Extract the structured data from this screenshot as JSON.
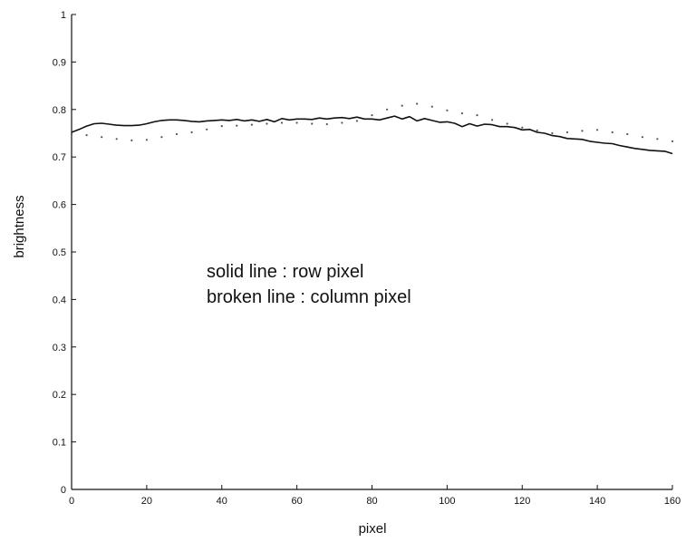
{
  "chart_data": {
    "type": "line",
    "xlabel": "pixel",
    "ylabel": "brightness",
    "xlim": [
      0,
      160
    ],
    "ylim": [
      0,
      1
    ],
    "xticks": [
      "0",
      "20",
      "40",
      "60",
      "80",
      "100",
      "120",
      "140",
      "160"
    ],
    "yticks": [
      "0",
      "0.1",
      "0.2",
      "0.3",
      "0.4",
      "0.5",
      "0.6",
      "0.7",
      "0.8",
      "0.9",
      "1"
    ],
    "annotations": [
      "solid line : row pixel",
      "broken line : column pixel"
    ],
    "grid": false,
    "series": [
      {
        "name": "row pixel",
        "style": "solid",
        "color": "#111111",
        "x": [
          0,
          2,
          4,
          6,
          8,
          10,
          12,
          14,
          16,
          18,
          20,
          22,
          24,
          26,
          28,
          30,
          32,
          34,
          36,
          38,
          40,
          42,
          44,
          46,
          48,
          50,
          52,
          54,
          56,
          58,
          60,
          62,
          64,
          66,
          68,
          70,
          72,
          74,
          76,
          78,
          80,
          82,
          84,
          86,
          88,
          90,
          92,
          94,
          96,
          98,
          100,
          102,
          104,
          106,
          108,
          110,
          112,
          114,
          116,
          118,
          120,
          122,
          124,
          126,
          128,
          130,
          132,
          134,
          136,
          138,
          140,
          142,
          144,
          146,
          148,
          150,
          152,
          154,
          156,
          158,
          160
        ],
        "y": [
          0.752,
          0.758,
          0.765,
          0.77,
          0.771,
          0.769,
          0.767,
          0.766,
          0.766,
          0.767,
          0.77,
          0.774,
          0.777,
          0.778,
          0.778,
          0.777,
          0.775,
          0.774,
          0.776,
          0.777,
          0.778,
          0.777,
          0.779,
          0.776,
          0.778,
          0.775,
          0.779,
          0.774,
          0.781,
          0.778,
          0.78,
          0.78,
          0.779,
          0.782,
          0.78,
          0.782,
          0.783,
          0.781,
          0.784,
          0.78,
          0.78,
          0.778,
          0.782,
          0.786,
          0.78,
          0.785,
          0.776,
          0.781,
          0.777,
          0.773,
          0.774,
          0.771,
          0.764,
          0.77,
          0.765,
          0.769,
          0.768,
          0.764,
          0.764,
          0.762,
          0.757,
          0.758,
          0.752,
          0.75,
          0.745,
          0.743,
          0.739,
          0.738,
          0.737,
          0.733,
          0.731,
          0.729,
          0.728,
          0.724,
          0.721,
          0.718,
          0.716,
          0.714,
          0.713,
          0.712,
          0.707
        ]
      },
      {
        "name": "column pixel",
        "style": "dotted",
        "color": "#555555",
        "x": [
          0,
          4,
          8,
          12,
          16,
          20,
          24,
          28,
          32,
          36,
          40,
          44,
          48,
          52,
          56,
          60,
          64,
          68,
          72,
          76,
          80,
          84,
          88,
          92,
          96,
          100,
          104,
          108,
          112,
          116,
          120,
          124,
          128,
          132,
          136,
          140,
          144,
          148,
          152,
          156,
          160
        ],
        "y": [
          0.748,
          0.746,
          0.742,
          0.738,
          0.735,
          0.736,
          0.742,
          0.748,
          0.752,
          0.758,
          0.765,
          0.766,
          0.768,
          0.77,
          0.772,
          0.772,
          0.77,
          0.769,
          0.772,
          0.776,
          0.788,
          0.8,
          0.808,
          0.812,
          0.806,
          0.798,
          0.792,
          0.788,
          0.778,
          0.77,
          0.762,
          0.756,
          0.75,
          0.752,
          0.755,
          0.757,
          0.752,
          0.748,
          0.742,
          0.738,
          0.733
        ]
      }
    ]
  }
}
